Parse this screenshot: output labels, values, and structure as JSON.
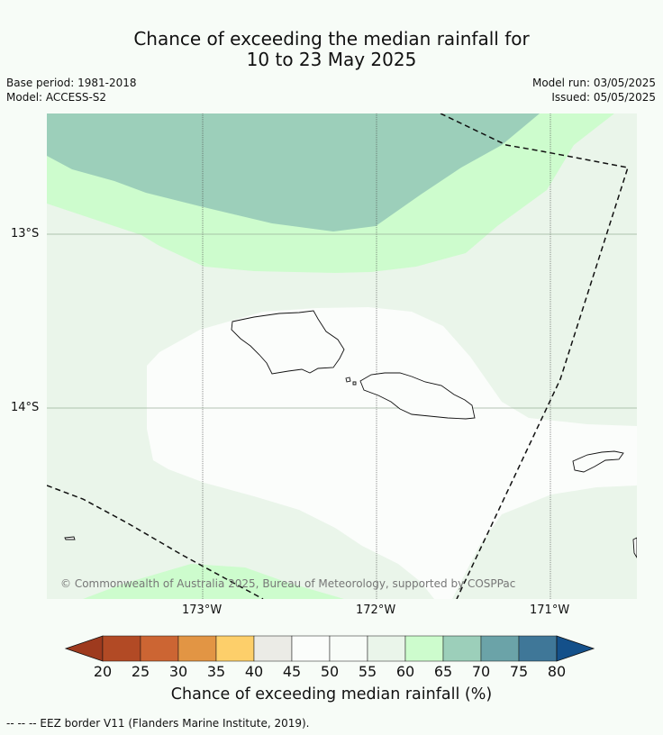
{
  "title_line1": "Chance of exceeding the median rainfall for",
  "title_line2": "10 to 23 May 2025",
  "base_period": "Base period: 1981-2018",
  "model": "Model: ACCESS-S2",
  "model_run": "Model run: 03/05/2025",
  "issued": "Issued: 05/05/2025",
  "lat_ticks": [
    "13°S",
    "14°S"
  ],
  "lon_ticks": [
    "173°W",
    "172°W",
    "171°W"
  ],
  "copyright": "© Commonwealth of Australia 2025, Bureau of Meteorology, supported by COSPPac",
  "colorbar": {
    "labels": [
      "20",
      "25",
      "30",
      "35",
      "40",
      "45",
      "50",
      "55",
      "60",
      "65",
      "70",
      "75",
      "80"
    ],
    "colors": [
      "#9e3a1e",
      "#b24a25",
      "#cc6533",
      "#e29544",
      "#fdcf6a",
      "#ebebe6",
      "#fbfdfb",
      "#f8fcf8",
      "#eaf5ea",
      "#cdfccd",
      "#9ccfba",
      "#6ba3a8",
      "#3f7798",
      "#14508a"
    ],
    "title": "Chance of exceeding median rainfall (%)"
  },
  "legend_note": "-- -- -- EEZ border V11 (Flanders Marine Institute, 2019)."
}
